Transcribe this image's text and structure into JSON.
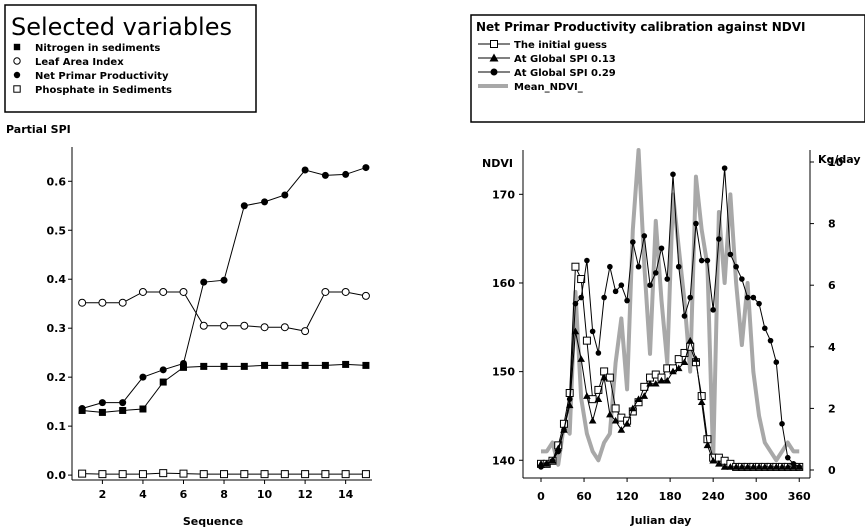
{
  "chart_data": [
    {
      "type": "line",
      "legend_title": "Selected variables",
      "ylabel": "Partial SPI",
      "xlabel": "Sequence",
      "ylim": [
        -0.01,
        0.67
      ],
      "xlim": [
        0.5,
        15.3
      ],
      "x_ticks": [
        "2",
        "4",
        "6",
        "8",
        "10",
        "12",
        "14"
      ],
      "y_ticks": [
        "0.0",
        "0.1",
        "0.2",
        "0.3",
        "0.4",
        "0.5",
        "0.6"
      ],
      "x": [
        1,
        2,
        3,
        4,
        5,
        6,
        7,
        8,
        9,
        10,
        11,
        12,
        13,
        14,
        15
      ],
      "series": [
        {
          "name": "Nitrogen in sediments",
          "marker": "filled-square",
          "values": [
            0.132,
            0.128,
            0.132,
            0.135,
            0.19,
            0.22,
            0.222,
            0.222,
            0.222,
            0.224,
            0.224,
            0.224,
            0.224,
            0.226,
            0.224
          ]
        },
        {
          "name": "Leaf Area Index",
          "marker": "open-circle",
          "values": [
            0.352,
            0.352,
            0.352,
            0.374,
            0.374,
            0.374,
            0.305,
            0.305,
            0.305,
            0.302,
            0.302,
            0.294,
            0.374,
            0.374,
            0.366
          ]
        },
        {
          "name": "Net Primar Productivity",
          "marker": "filled-circle",
          "values": [
            0.136,
            0.148,
            0.148,
            0.2,
            0.215,
            0.228,
            0.394,
            0.398,
            0.55,
            0.558,
            0.572,
            0.623,
            0.612,
            0.614,
            0.628
          ]
        },
        {
          "name": "Phosphate in Sediments",
          "marker": "open-square",
          "values": [
            0.003,
            0.002,
            0.002,
            0.002,
            0.004,
            0.003,
            0.002,
            0.002,
            0.002,
            0.002,
            0.002,
            0.002,
            0.002,
            0.002,
            0.002
          ]
        }
      ]
    },
    {
      "type": "line",
      "title": "Net Primar Productivity calibration against NDVI",
      "xlabel": "Julian day",
      "ylabel_left": "NDVI",
      "ylabel_right": "Kg/day",
      "xlim": [
        0,
        375
      ],
      "ylim_left": [
        138,
        175
      ],
      "ylim_right": [
        0,
        10
      ],
      "x_ticks": [
        "0",
        "60",
        "120",
        "180",
        "240",
        "300",
        "360"
      ],
      "y_ticks_left": [
        "140",
        "150",
        "160",
        "170"
      ],
      "y_ticks_right": [
        "0",
        "2",
        "4",
        "6",
        "8",
        "10"
      ],
      "series": [
        {
          "name": "The initial guess",
          "marker": "open-square",
          "axis": "right",
          "x": [
            0,
            8,
            16,
            24,
            32,
            40,
            48,
            56,
            64,
            72,
            80,
            88,
            96,
            104,
            112,
            120,
            128,
            136,
            144,
            152,
            160,
            168,
            176,
            184,
            192,
            200,
            208,
            216,
            224,
            232,
            240,
            248,
            256,
            264,
            272,
            280,
            288,
            296,
            304,
            312,
            320,
            328,
            336,
            344,
            352,
            360
          ],
          "values": [
            0.2,
            0.2,
            0.3,
            0.8,
            1.5,
            2.5,
            6.6,
            6.2,
            4.2,
            2.3,
            2.6,
            3.2,
            3.0,
            2.0,
            1.7,
            1.6,
            1.9,
            2.2,
            2.7,
            3.0,
            3.1,
            3.0,
            3.3,
            3.3,
            3.6,
            3.8,
            4.0,
            3.5,
            2.4,
            1.0,
            0.4,
            0.4,
            0.3,
            0.2,
            0.1,
            0.1,
            0.1,
            0.1,
            0.1,
            0.1,
            0.1,
            0.1,
            0.1,
            0.1,
            0.1,
            0.1
          ]
        },
        {
          "name": "At Global SPI 0.13",
          "marker": "filled-triangle",
          "axis": "right",
          "x": [
            0,
            8,
            16,
            24,
            32,
            40,
            48,
            56,
            64,
            72,
            80,
            88,
            96,
            104,
            112,
            120,
            128,
            136,
            144,
            152,
            160,
            168,
            176,
            184,
            192,
            200,
            208,
            216,
            224,
            232,
            240,
            248,
            256,
            264,
            272,
            280,
            288,
            296,
            304,
            312,
            320,
            328,
            336,
            344,
            352,
            360
          ],
          "values": [
            0.2,
            0.2,
            0.3,
            0.7,
            1.3,
            2.1,
            4.5,
            3.6,
            2.4,
            1.6,
            2.3,
            3.0,
            1.8,
            1.6,
            1.3,
            1.5,
            2.0,
            2.3,
            2.4,
            2.8,
            2.8,
            2.9,
            2.9,
            3.2,
            3.3,
            3.5,
            4.2,
            3.6,
            2.2,
            0.8,
            0.3,
            0.2,
            0.1,
            0.1,
            0.1,
            0.1,
            0.1,
            0.1,
            0.1,
            0.1,
            0.1,
            0.1,
            0.1,
            0.1,
            0.1,
            0.1
          ]
        },
        {
          "name": "At Global SPI 0.29",
          "marker": "filled-circle",
          "axis": "right",
          "x": [
            0,
            8,
            16,
            24,
            32,
            40,
            48,
            56,
            64,
            72,
            80,
            88,
            96,
            104,
            112,
            120,
            128,
            136,
            144,
            152,
            160,
            168,
            176,
            184,
            192,
            200,
            208,
            216,
            224,
            232,
            240,
            248,
            256,
            264,
            272,
            280,
            288,
            296,
            304,
            312,
            320,
            328,
            336,
            344,
            352,
            360
          ],
          "values": [
            0.1,
            0.2,
            0.3,
            0.6,
            1.3,
            2.3,
            5.4,
            5.6,
            6.8,
            4.5,
            3.8,
            5.6,
            6.6,
            5.8,
            6.0,
            5.5,
            7.4,
            6.6,
            7.6,
            6.0,
            6.4,
            7.2,
            6.2,
            9.6,
            6.6,
            5.0,
            5.6,
            8.0,
            6.8,
            6.8,
            5.2,
            7.5,
            9.8,
            7.0,
            6.6,
            6.2,
            5.6,
            5.6,
            5.4,
            4.6,
            4.2,
            3.5,
            1.5,
            0.4,
            0.2,
            0.1
          ]
        },
        {
          "name": "Mean_NDVI_",
          "marker": "none",
          "axis": "left",
          "color": "#a8a8a8",
          "x": [
            0,
            8,
            16,
            24,
            32,
            40,
            48,
            56,
            64,
            72,
            80,
            88,
            96,
            104,
            112,
            120,
            128,
            136,
            144,
            152,
            160,
            168,
            176,
            184,
            192,
            200,
            208,
            216,
            224,
            232,
            240,
            248,
            256,
            264,
            272,
            280,
            288,
            296,
            304,
            312,
            320,
            328,
            336,
            344,
            352,
            360
          ],
          "values": [
            141,
            141,
            142,
            139.5,
            144,
            143,
            159,
            147,
            143,
            141,
            140,
            142,
            143,
            151,
            156,
            148,
            166,
            175,
            162,
            152,
            167,
            158,
            151,
            170,
            164,
            158,
            150,
            172,
            166,
            162,
            140,
            168,
            160,
            170,
            160,
            153,
            160,
            150,
            145,
            142,
            141,
            140,
            141,
            142,
            141,
            141
          ]
        }
      ]
    }
  ]
}
